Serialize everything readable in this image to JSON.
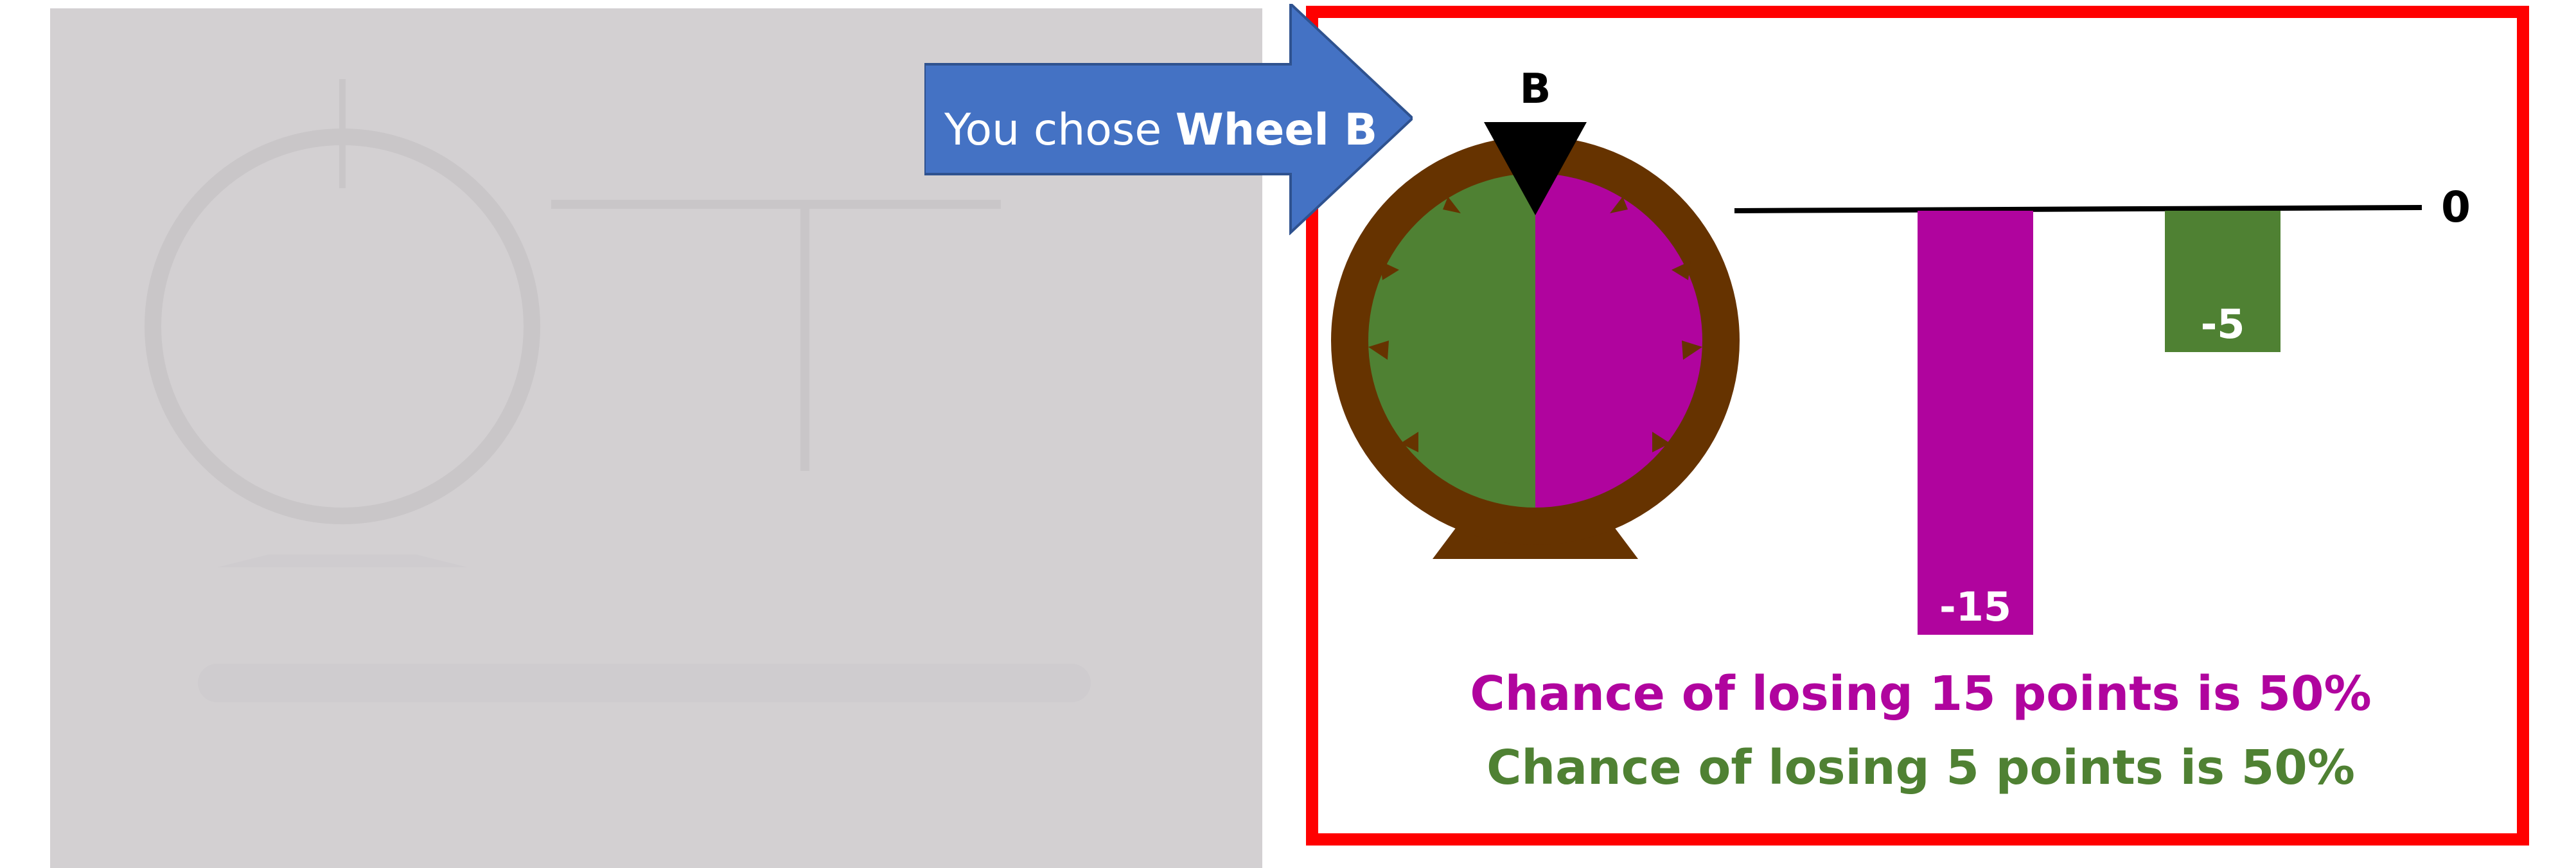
{
  "arrow": {
    "prefix": "You chose ",
    "choice": "Wheel B",
    "color": "#4472c4"
  },
  "wheel": {
    "label": "B",
    "colors": {
      "rim": "#663300",
      "left": "#4f8133",
      "right": "#b0049e",
      "pointer": "#000000"
    }
  },
  "chart_data": {
    "type": "bar",
    "categories": [
      "lose 15",
      "lose 5"
    ],
    "values": [
      -15,
      -5
    ],
    "value_labels": [
      "-15",
      "-5"
    ],
    "colors": [
      "#b0049e",
      "#4f8133"
    ],
    "baseline_label": "0",
    "ylim": [
      -15,
      0
    ],
    "title": "",
    "xlabel": "",
    "ylabel": ""
  },
  "captions": {
    "line1": "Chance of losing 15 points is 50%",
    "line2": "Chance of losing 5 points is 50%",
    "line1_color": "#b0049e",
    "line2_color": "#4f8133"
  },
  "colors": {
    "frame": "#ff0000",
    "faded_panel": "#d3d0d2"
  }
}
